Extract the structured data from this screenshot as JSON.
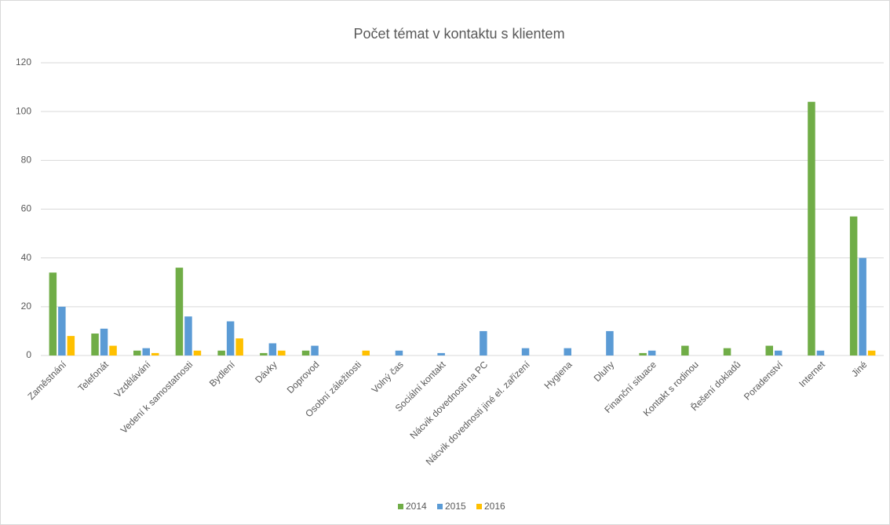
{
  "chart_data": {
    "type": "bar",
    "title": "Počet témat v kontaktu s klientem",
    "categories": [
      "Zaměstnání",
      "Telefonát",
      "Vzdělávání",
      "Vedení k samostatnosti",
      "Bydlení",
      "Dávky",
      "Doprovod",
      "Osobní záležitosti",
      "Volný čas",
      "Sociální kontakt",
      "Nácvik dovednosti na PC",
      "Nácvik dovednosti jiné el. zařízení",
      "Hygiena",
      "Dluhy",
      "Finanční situace",
      "Kontakt s rodinou",
      "Řešení dokladů",
      "Poradenství",
      "Internet",
      "Jiné"
    ],
    "series": [
      {
        "name": "2014",
        "color": "#70ad47",
        "values": [
          34,
          9,
          2,
          36,
          2,
          1,
          2,
          0,
          0,
          0,
          0,
          0,
          0,
          0,
          1,
          4,
          3,
          4,
          104,
          57
        ]
      },
      {
        "name": "2015",
        "color": "#5b9bd5",
        "values": [
          20,
          11,
          3,
          16,
          14,
          5,
          4,
          0,
          2,
          1,
          10,
          3,
          3,
          10,
          2,
          0,
          0,
          2,
          2,
          40
        ]
      },
      {
        "name": "2016",
        "color": "#ffc000",
        "values": [
          8,
          4,
          1,
          2,
          7,
          2,
          0,
          2,
          0,
          0,
          0,
          0,
          0,
          0,
          0,
          0,
          0,
          0,
          0,
          2
        ]
      }
    ],
    "ylim": [
      0,
      120
    ],
    "yticks": [
      0,
      20,
      40,
      60,
      80,
      100,
      120
    ],
    "grid": true,
    "legend": "bottom"
  }
}
